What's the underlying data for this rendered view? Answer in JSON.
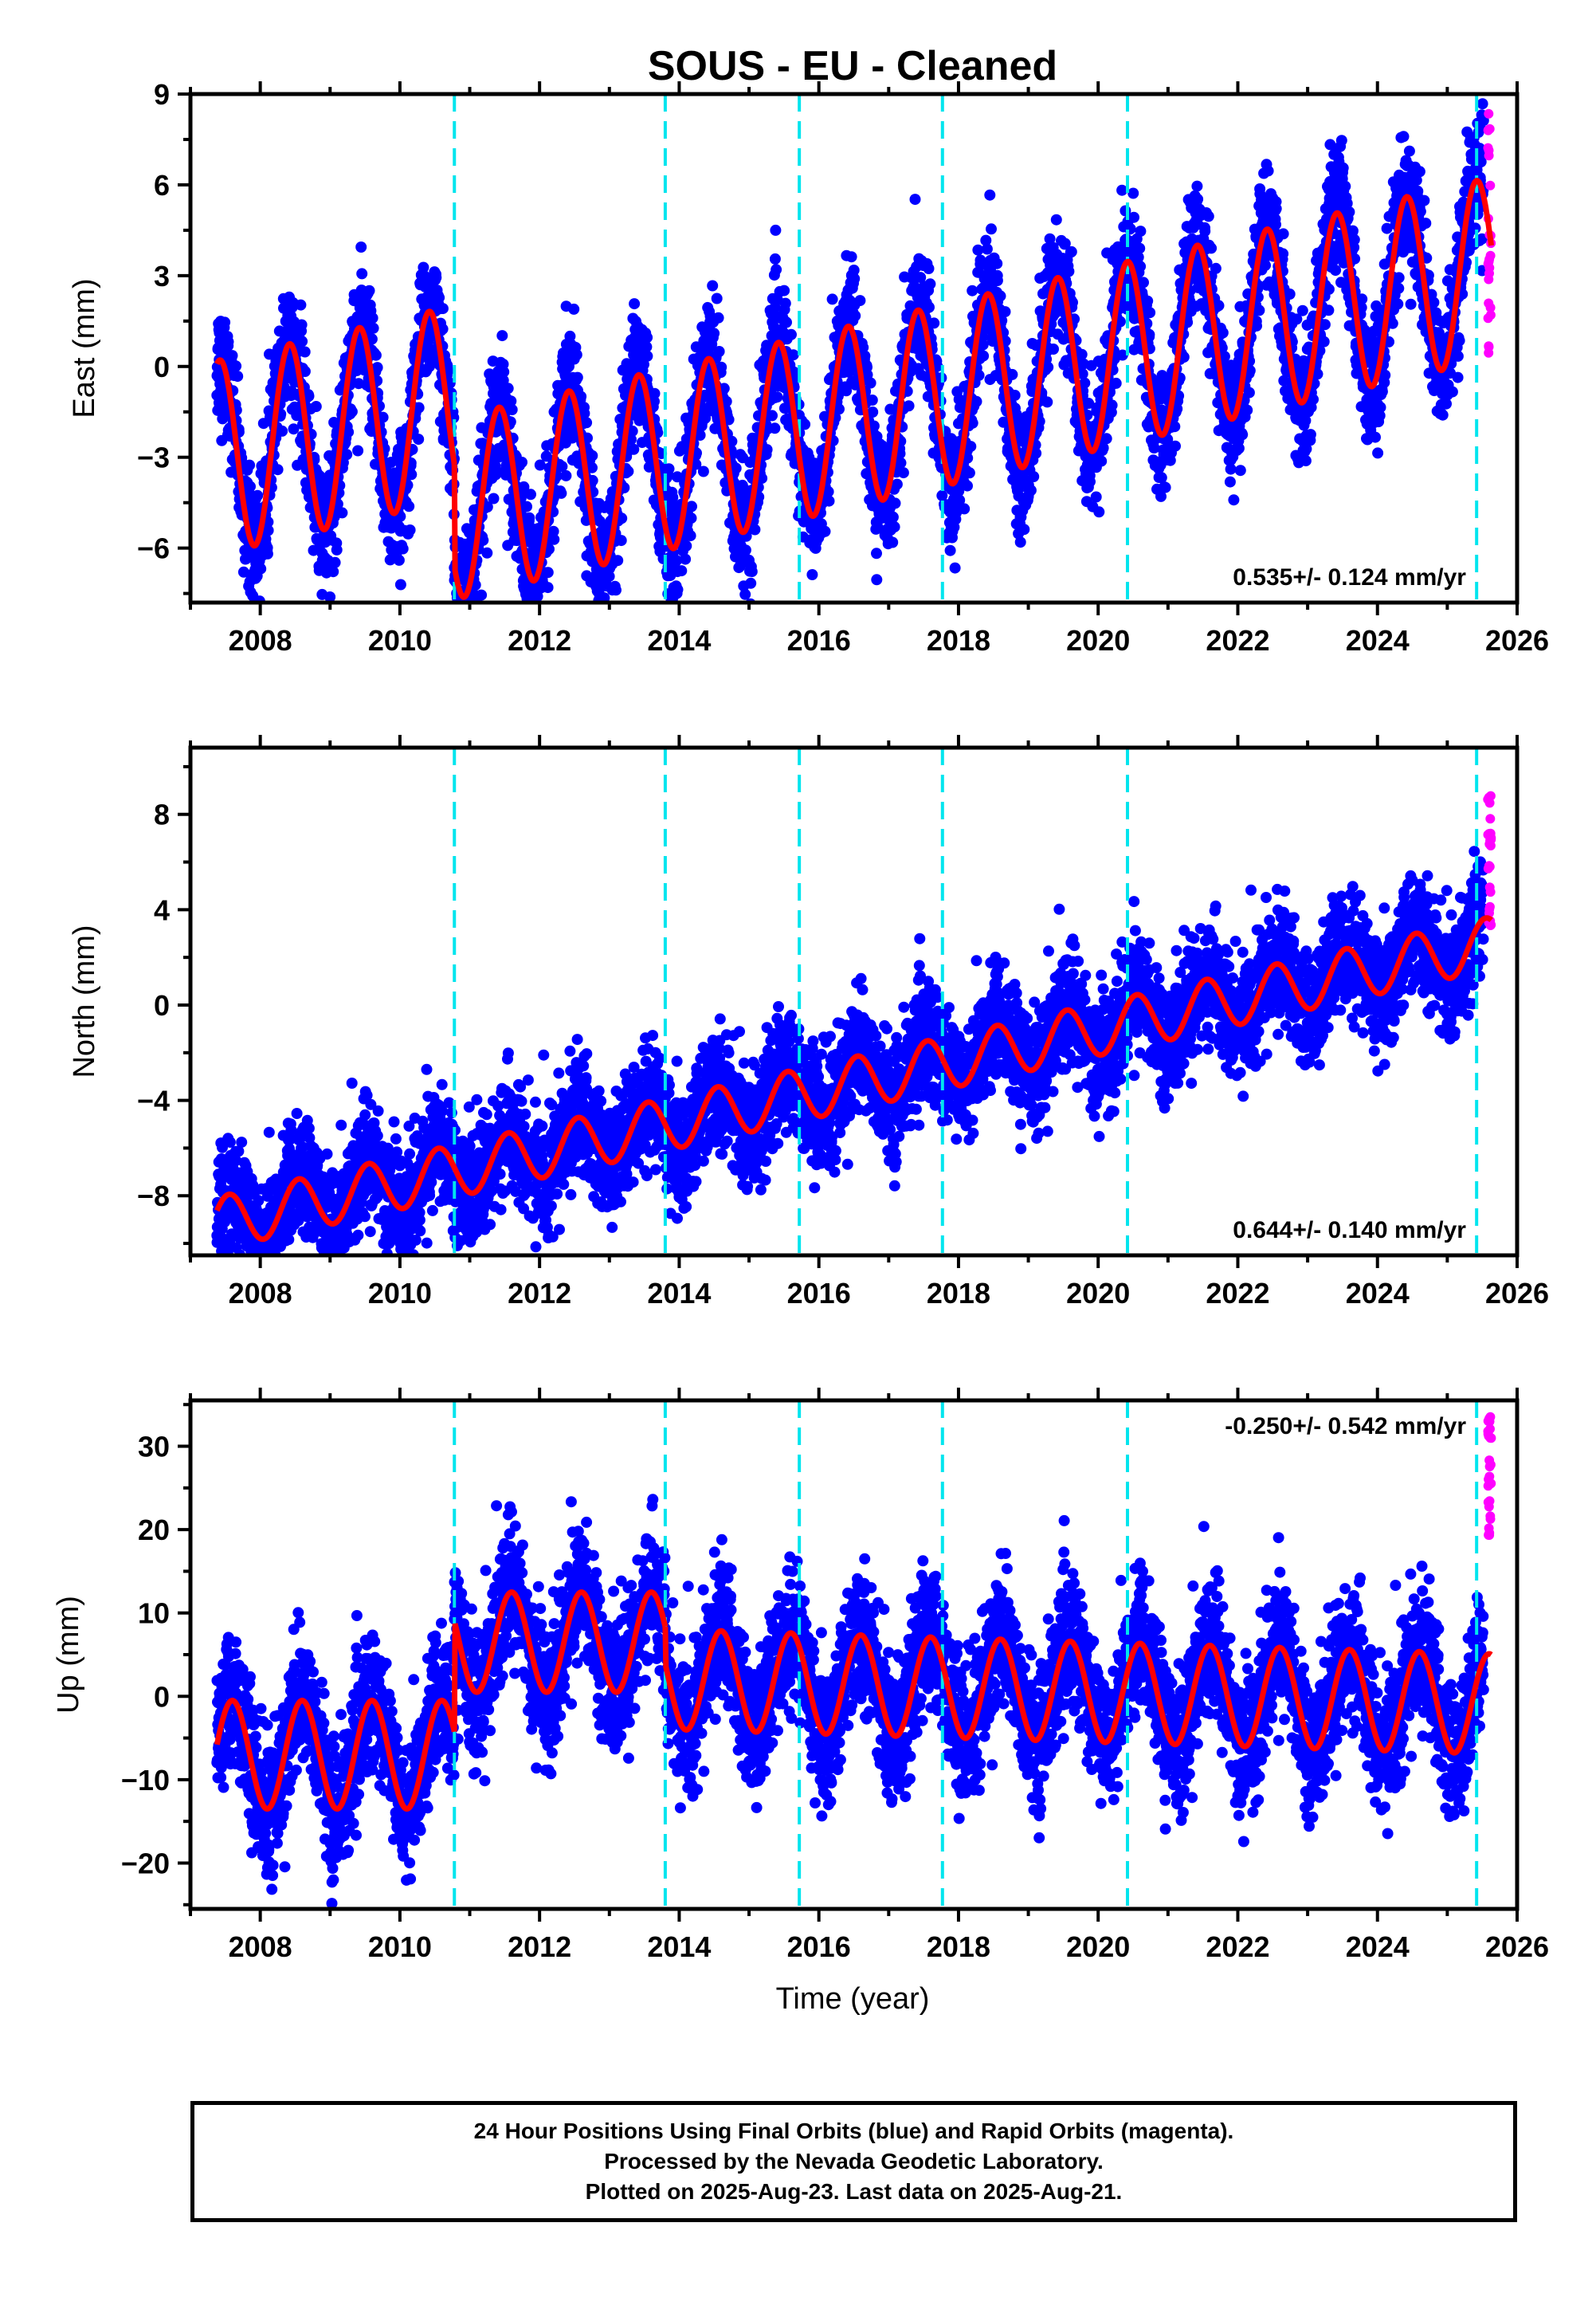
{
  "title": "SOUS  - EU - Cleaned",
  "xlabel": "Time (year)",
  "footer": {
    "line1": "24 Hour Positions Using Final Orbits (blue) and Rapid Orbits (magenta).",
    "line2": "Processed by the Nevada Geodetic Laboratory.",
    "line3": "Plotted on 2025-Aug-23. Last data on 2025-Aug-21."
  },
  "colors": {
    "final_points": "#0000ff",
    "rapid_points": "#ff00ff",
    "model_fit": "#ff0000",
    "equipment_change_lines": "#00e5ee"
  },
  "chart_data": [
    {
      "type": "scatter",
      "component": "east",
      "ylabel": "East (mm)",
      "rate_label": "0.535+/- 0.124 mm/yr",
      "xlim": [
        2007.0,
        2026.0
      ],
      "ylim": [
        -7.8,
        9.0
      ],
      "xticks": [
        "2008",
        "2010",
        "2012",
        "2014",
        "2016",
        "2018",
        "2020",
        "2022",
        "2024",
        "2026"
      ],
      "yticks": [
        "-6",
        "-3",
        "0",
        "3",
        "6",
        "9"
      ],
      "data_start": 2007.38,
      "data_end": 2025.63,
      "rapid_start": 2025.52,
      "equipment_changes": [
        2010.78,
        2013.8,
        2015.72,
        2017.77,
        2020.42,
        2025.42
      ],
      "segments": [
        {
          "start": 2007.38,
          "end": 2010.78,
          "offset": 1.6,
          "trend": 0.535,
          "amplitude": 3.2
        },
        {
          "start": 2010.78,
          "end": 2025.63,
          "offset": -1.9,
          "trend": 0.535,
          "amplitude": 3.0
        }
      ],
      "annual_peak": 0.42,
      "scatter_sd": 1.0,
      "rapid_range": [
        0.4,
        8.4
      ]
    },
    {
      "type": "scatter",
      "component": "north",
      "ylabel": "North (mm)",
      "rate_label": "0.644+/- 0.140 mm/yr",
      "xlim": [
        2007.0,
        2026.0
      ],
      "ylim": [
        -10.5,
        10.8
      ],
      "xticks": [
        "2008",
        "2010",
        "2012",
        "2014",
        "2016",
        "2018",
        "2020",
        "2022",
        "2024",
        "2026"
      ],
      "yticks": [
        "-8",
        "-4",
        "0",
        "4",
        "8"
      ],
      "data_start": 2007.38,
      "data_end": 2025.63,
      "rapid_start": 2025.52,
      "equipment_changes": [
        2010.78,
        2013.8,
        2015.72,
        2017.77,
        2020.42,
        2025.42
      ],
      "segments": [
        {
          "start": 2007.38,
          "end": 2025.63,
          "offset": -3.6,
          "trend": 0.644,
          "amplitude": 1.1
        }
      ],
      "annual_peak": 0.55,
      "scatter_sd": 1.2,
      "rapid_range": [
        3.2,
        8.8
      ]
    },
    {
      "type": "scatter",
      "component": "up",
      "ylabel": "Up (mm)",
      "rate_label": "-0.250+/- 0.542 mm/yr",
      "xlim": [
        2007.0,
        2026.0
      ],
      "ylim": [
        -25.5,
        35.5
      ],
      "xticks": [
        "2008",
        "2010",
        "2012",
        "2014",
        "2016",
        "2018",
        "2020",
        "2022",
        "2024",
        "2026"
      ],
      "yticks": [
        "-20",
        "-10",
        "0",
        "10",
        "20",
        "30"
      ],
      "data_start": 2007.38,
      "data_end": 2025.63,
      "rapid_start": 2025.52,
      "equipment_changes": [
        2010.78,
        2013.8,
        2015.72,
        2017.77,
        2020.42,
        2025.42
      ],
      "segments": [
        {
          "start": 2007.38,
          "end": 2010.78,
          "offset": -7.0,
          "trend": 0.0,
          "amplitude": 6.5
        },
        {
          "start": 2010.78,
          "end": 2013.8,
          "offset": 6.5,
          "trend": 0.0,
          "amplitude": 6.0
        },
        {
          "start": 2013.8,
          "end": 2025.63,
          "offset": 1.5,
          "trend": -0.25,
          "amplitude": 6.0
        }
      ],
      "annual_peak": 0.6,
      "scatter_sd": 4.0,
      "rapid_range": [
        18.0,
        34.0
      ]
    }
  ]
}
